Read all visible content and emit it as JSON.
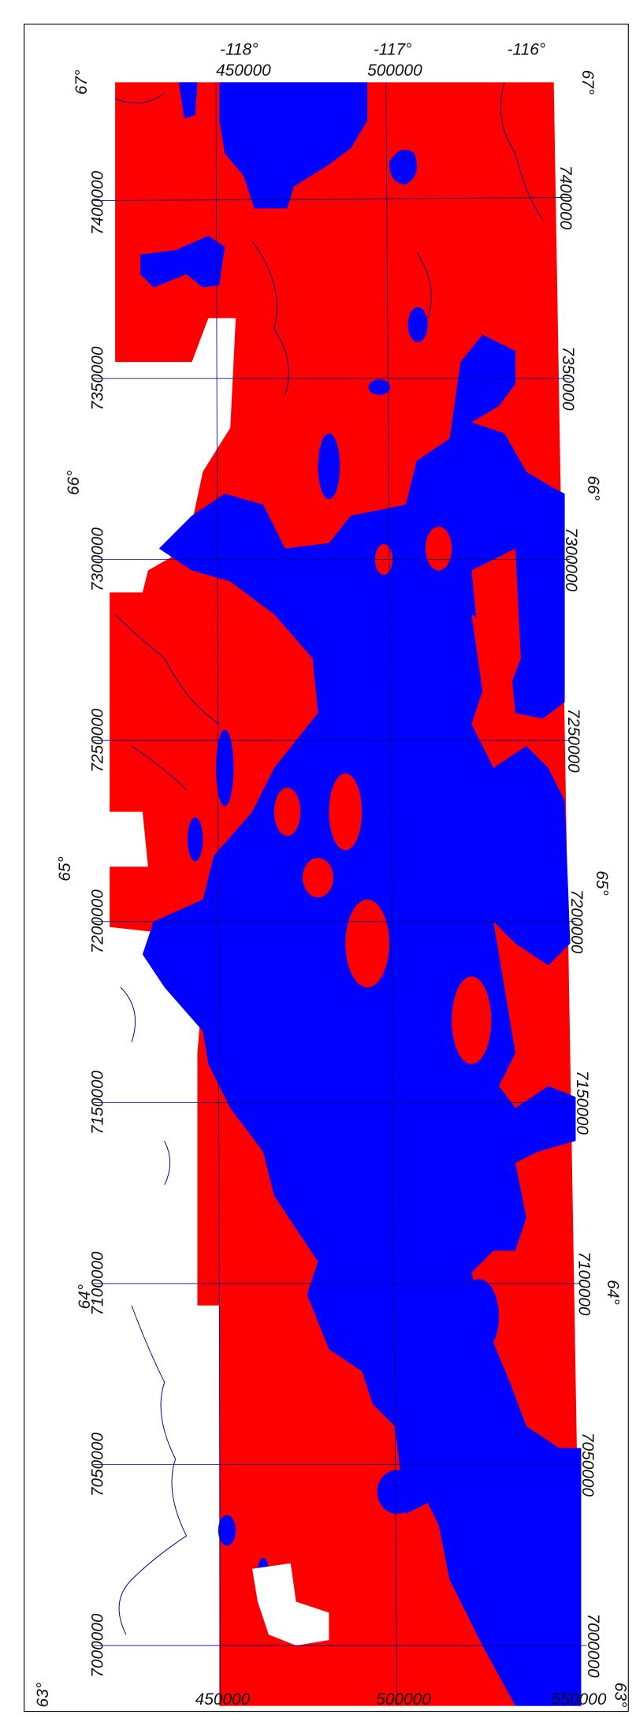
{
  "map": {
    "top_longitudes": [
      "-118°",
      "-117°",
      "-116°"
    ],
    "top_eastings": [
      "450000",
      "500000"
    ],
    "bottom_eastings": [
      "450000",
      "500000",
      "550000"
    ],
    "left_labels": [
      "67°",
      "7400000",
      "7350000",
      "66°",
      "7300000",
      "7250000",
      "65°",
      "7200000",
      "7150000",
      "7100000",
      "64°",
      "7050000",
      "7000000",
      "63°"
    ],
    "right_labels": [
      "67°",
      "7400000",
      "7350000",
      "66°",
      "7300000",
      "7250000",
      "65°",
      "7200000",
      "7150000",
      "64°",
      "7100000",
      "7050000",
      "7000000",
      "63°"
    ]
  }
}
